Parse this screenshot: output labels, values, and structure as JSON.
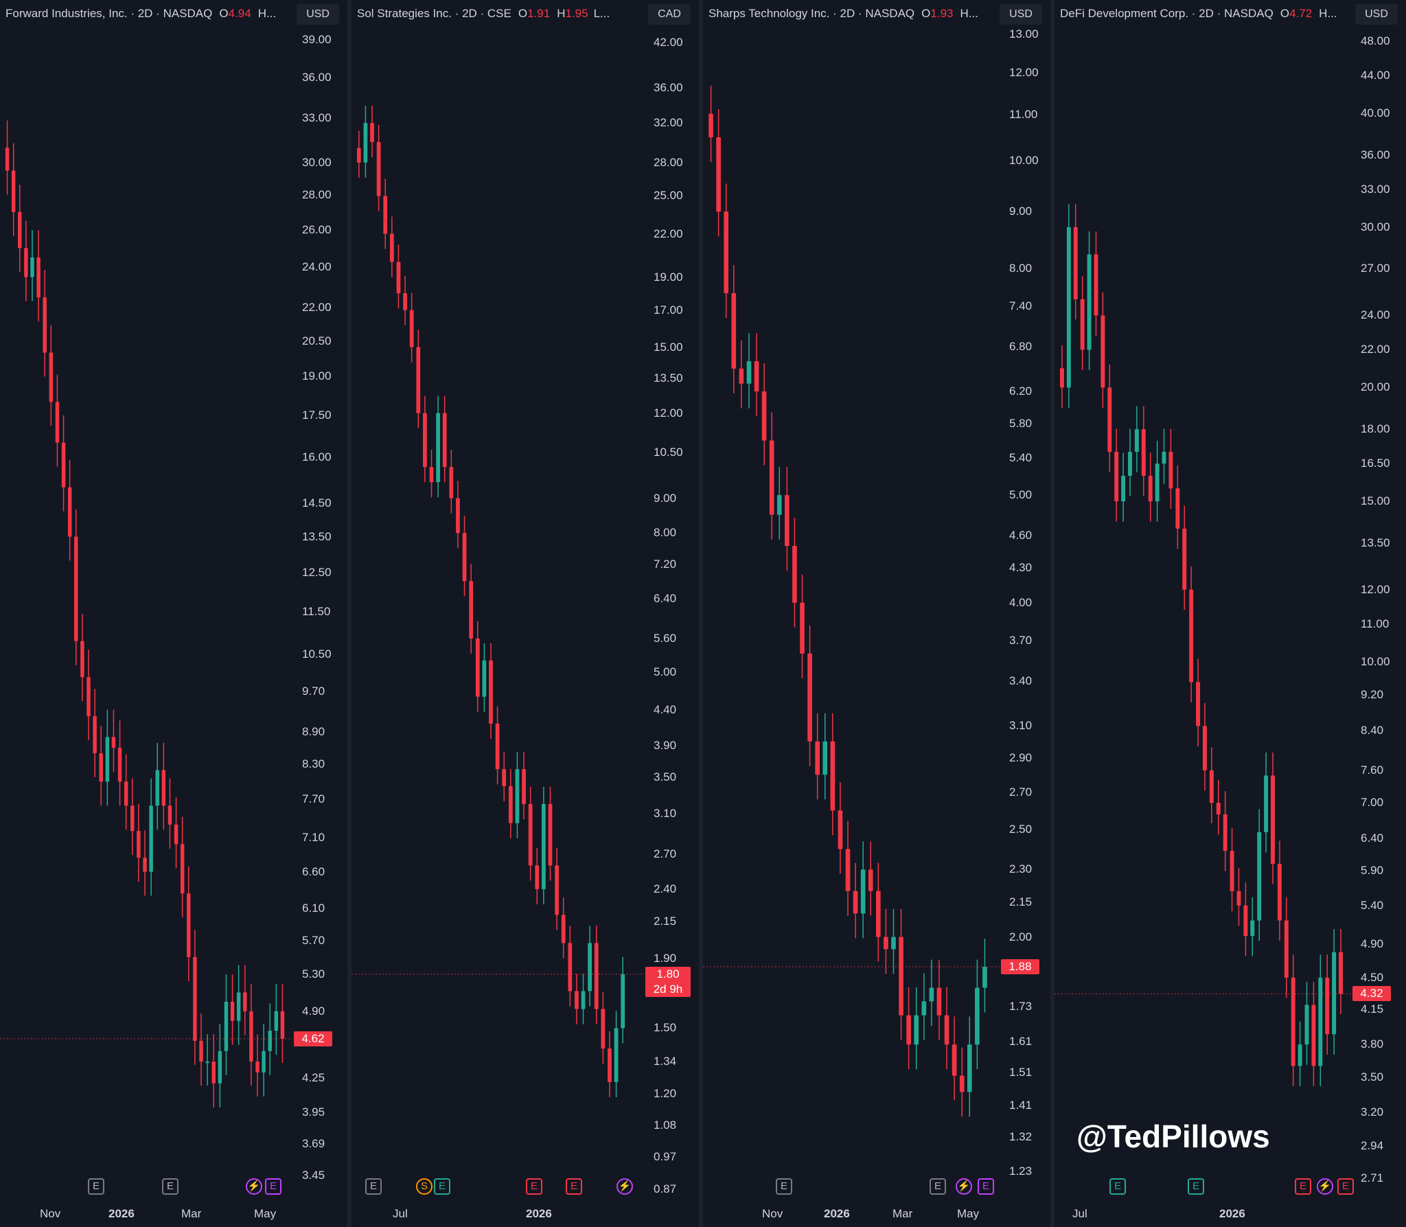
{
  "watermark": "@TedPillows",
  "colors": {
    "up": "#22ab94",
    "down": "#f23645",
    "background": "#131722",
    "price_tag": "#f23645"
  },
  "panels": [
    {
      "header": {
        "name": "Forward Industries, Inc. · 2D · NASDAQ",
        "o_label": "O",
        "o_value": "4.94",
        "h_label": "H",
        "dots": "..."
      },
      "currency": "USD",
      "current_price": "4.62",
      "current_sub": "",
      "time_labels": [
        "Nov",
        "2026",
        "Mar",
        "May"
      ],
      "events": [
        "E",
        "E",
        "⚡",
        "E"
      ],
      "chart_data": {
        "type": "candlestick",
        "y_scale": "log",
        "ylim": [
          3.45,
          39.0
        ],
        "y_ticks": [
          "39.00",
          "36.00",
          "33.00",
          "30.00",
          "28.00",
          "26.00",
          "24.00",
          "22.00",
          "20.50",
          "19.00",
          "17.50",
          "16.00",
          "14.50",
          "13.50",
          "12.50",
          "11.50",
          "10.50",
          "9.70",
          "8.90",
          "8.30",
          "7.70",
          "7.10",
          "6.60",
          "6.10",
          "5.70",
          "5.30",
          "4.90",
          "4.25",
          "3.95",
          "3.69",
          "3.45"
        ],
        "x_labels": [
          "Nov",
          "2026",
          "Mar",
          "May"
        ],
        "closes": [
          29.5,
          27.0,
          25.0,
          23.5,
          24.5,
          22.5,
          20.0,
          18.0,
          16.5,
          15.0,
          13.5,
          10.8,
          10.0,
          9.2,
          8.5,
          8.0,
          8.8,
          8.6,
          8.0,
          7.6,
          7.2,
          6.8,
          6.6,
          7.6,
          8.2,
          7.6,
          7.3,
          7.0,
          6.3,
          5.5,
          4.6,
          4.4,
          4.4,
          4.2,
          4.5,
          5.0,
          4.8,
          5.1,
          4.9,
          4.4,
          4.3,
          4.5,
          4.7,
          4.9,
          4.62
        ]
      }
    },
    {
      "header": {
        "name": "Sol Strategies Inc. · 2D · CSE",
        "o_label": "O",
        "o_value": "1.91",
        "h_label": "H",
        "h_value": "1.95",
        "dots": "L..."
      },
      "currency": "CAD",
      "current_price": "1.80",
      "current_sub": "2d 9h",
      "time_labels": [
        "Jul",
        "2026"
      ],
      "events": [
        "E",
        "S",
        "E",
        "E",
        "E",
        "⚡"
      ],
      "chart_data": {
        "type": "candlestick",
        "y_scale": "log",
        "ylim": [
          0.87,
          42.0
        ],
        "y_ticks": [
          "42.00",
          "36.00",
          "32.00",
          "28.00",
          "25.00",
          "22.00",
          "19.00",
          "17.00",
          "15.00",
          "13.50",
          "12.00",
          "10.50",
          "9.00",
          "8.00",
          "7.20",
          "6.40",
          "5.60",
          "5.00",
          "4.40",
          "3.90",
          "3.50",
          "3.10",
          "2.70",
          "2.40",
          "2.15",
          "1.90",
          "1.50",
          "1.34",
          "1.20",
          "1.08",
          "0.97",
          "0.87"
        ],
        "x_labels": [
          "Jul",
          "2026"
        ],
        "closes": [
          28.0,
          32.0,
          30.0,
          25.0,
          22.0,
          20.0,
          18.0,
          17.0,
          15.0,
          12.0,
          10.0,
          9.5,
          12.0,
          10.0,
          9.0,
          8.0,
          6.8,
          5.6,
          4.6,
          5.2,
          4.2,
          3.6,
          3.4,
          3.0,
          3.6,
          3.2,
          2.6,
          2.4,
          3.2,
          2.6,
          2.2,
          2.0,
          1.7,
          1.6,
          1.7,
          2.0,
          1.6,
          1.4,
          1.25,
          1.5,
          1.8
        ]
      }
    },
    {
      "header": {
        "name": "Sharps Technology Inc. · 2D · NASDAQ",
        "o_label": "O",
        "o_value": "1.93",
        "h_label": "H",
        "dots": "..."
      },
      "currency": "USD",
      "current_price": "1.88",
      "current_sub": "",
      "time_labels": [
        "Nov",
        "2026",
        "Mar",
        "May"
      ],
      "events": [
        "E",
        "E",
        "⚡",
        "E"
      ],
      "chart_data": {
        "type": "candlestick",
        "y_scale": "log",
        "ylim": [
          1.23,
          13.0
        ],
        "y_ticks": [
          "13.00",
          "12.00",
          "11.00",
          "10.00",
          "9.00",
          "8.00",
          "7.40",
          "6.80",
          "6.20",
          "5.80",
          "5.40",
          "5.00",
          "4.60",
          "4.30",
          "4.00",
          "3.70",
          "3.40",
          "3.10",
          "2.90",
          "2.70",
          "2.50",
          "2.30",
          "2.15",
          "2.00",
          "1.73",
          "1.61",
          "1.51",
          "1.41",
          "1.32",
          "1.23"
        ],
        "x_labels": [
          "Nov",
          "2026",
          "Mar",
          "May"
        ],
        "closes": [
          10.5,
          9.0,
          7.6,
          6.5,
          6.3,
          6.6,
          6.2,
          5.6,
          4.8,
          5.0,
          4.5,
          4.0,
          3.6,
          3.0,
          2.8,
          3.0,
          2.6,
          2.4,
          2.2,
          2.1,
          2.3,
          2.2,
          2.0,
          1.95,
          2.0,
          1.7,
          1.6,
          1.7,
          1.75,
          1.8,
          1.7,
          1.6,
          1.5,
          1.45,
          1.6,
          1.8,
          1.88
        ]
      }
    },
    {
      "header": {
        "name": "DeFi Development Corp. · 2D · NASDAQ",
        "o_label": "O",
        "o_value": "4.72",
        "h_label": "H",
        "dots": "..."
      },
      "currency": "USD",
      "current_price": "4.32",
      "current_sub": "",
      "time_labels": [
        "Jul",
        "2026"
      ],
      "events": [
        "E",
        "E",
        "E",
        "⚡",
        "E"
      ],
      "chart_data": {
        "type": "candlestick",
        "y_scale": "log",
        "ylim": [
          2.71,
          48.0
        ],
        "y_ticks": [
          "48.00",
          "44.00",
          "40.00",
          "36.00",
          "33.00",
          "30.00",
          "27.00",
          "24.00",
          "22.00",
          "20.00",
          "18.00",
          "16.50",
          "15.00",
          "13.50",
          "12.00",
          "11.00",
          "10.00",
          "9.20",
          "8.40",
          "7.60",
          "7.00",
          "6.40",
          "5.90",
          "5.40",
          "4.90",
          "4.50",
          "4.15",
          "3.80",
          "3.50",
          "3.20",
          "2.94",
          "2.71"
        ],
        "x_labels": [
          "Jul",
          "2026"
        ],
        "closes": [
          20.0,
          30.0,
          25.0,
          22.0,
          28.0,
          24.0,
          20.0,
          17.0,
          15.0,
          16.0,
          17.0,
          18.0,
          16.0,
          15.0,
          16.5,
          17.0,
          15.5,
          14.0,
          12.0,
          9.5,
          8.5,
          7.6,
          7.0,
          6.8,
          6.2,
          5.6,
          5.4,
          5.0,
          5.2,
          6.5,
          7.5,
          6.0,
          5.2,
          4.5,
          3.6,
          3.8,
          4.2,
          3.6,
          4.5,
          3.9,
          4.8,
          4.32
        ]
      }
    }
  ]
}
